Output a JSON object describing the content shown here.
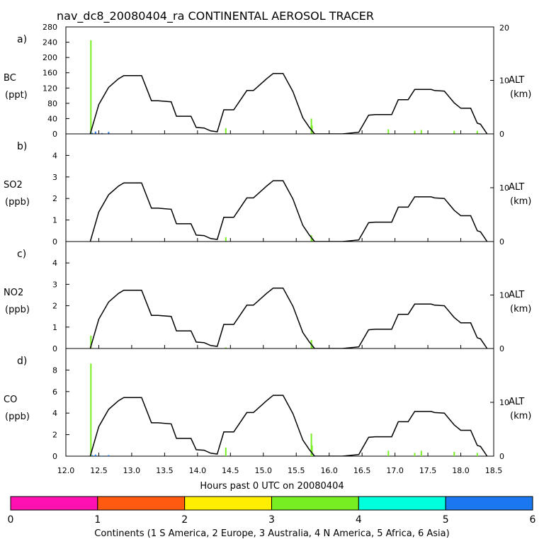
{
  "title": "nav_dc8_20080404_ra CONTINENTAL AEROSOL TRACER",
  "x_axis": {
    "label": "Hours past 0 UTC on 20080404",
    "ticks": [
      "12.0",
      "12.5",
      "13.0",
      "13.5",
      "14.0",
      "14.5",
      "15.0",
      "15.5",
      "16.0",
      "16.5",
      "17.0",
      "17.5",
      "18.0",
      "18.5"
    ]
  },
  "right_axis": {
    "label": "ALT",
    "units": "(km)",
    "ticks": [
      "0",
      "10",
      "20"
    ]
  },
  "panels": [
    {
      "id": "a",
      "letter": "a)",
      "species": "BC",
      "units": "(ppt)",
      "left_ticks": [
        "0",
        "40",
        "80",
        "120",
        "160",
        "200",
        "240",
        "280"
      ]
    },
    {
      "id": "b",
      "letter": "b)",
      "species": "SO2",
      "units": "(ppb)",
      "left_ticks": [
        "0",
        "1",
        "2",
        "3",
        "4"
      ]
    },
    {
      "id": "c",
      "letter": "c)",
      "species": "NO2",
      "units": "(ppb)",
      "left_ticks": [
        "0",
        "1",
        "2",
        "3",
        "4"
      ]
    },
    {
      "id": "d",
      "letter": "d)",
      "species": "CO",
      "units": "(ppb)",
      "left_ticks": [
        "0",
        "2",
        "4",
        "6",
        "8"
      ]
    }
  ],
  "colorbar": {
    "ticks": [
      "0",
      "1",
      "2",
      "3",
      "4",
      "5",
      "6"
    ],
    "colors": [
      "#ff10b0",
      "#ff5a10",
      "#ffee00",
      "#77ee22",
      "#00ffdd",
      "#1c78f0"
    ],
    "label": "Continents (1 S America, 2 Europe, 3 Australia, 4 N America, 5 Africa, 6 Asia)"
  },
  "chart_data": [
    {
      "type": "line",
      "panel": "a",
      "title": "BC",
      "xlabel": "Hours past 0 UTC on 20080404",
      "ylabel": "BC (ppt)",
      "ylabel_right": "ALT (km)",
      "xlim": [
        12.0,
        18.5
      ],
      "ylim": [
        0,
        280
      ],
      "ylim_right": [
        0,
        20
      ],
      "series": [
        {
          "name": "ALT",
          "axis": "right",
          "x": [
            12.37,
            12.5,
            12.65,
            12.8,
            12.88,
            13.15,
            13.3,
            13.4,
            13.6,
            13.68,
            13.9,
            13.98,
            14.1,
            14.2,
            14.3,
            14.4,
            14.55,
            14.75,
            14.85,
            15.05,
            15.15,
            15.3,
            15.45,
            15.6,
            15.7,
            15.78,
            16.0,
            16.2,
            16.45,
            16.6,
            16.7,
            16.95,
            17.05,
            17.2,
            17.3,
            17.55,
            17.6,
            17.75,
            17.9,
            18.0,
            18.15,
            18.25,
            18.3,
            18.4
          ],
          "y": [
            0,
            5.5,
            8.7,
            10.3,
            10.9,
            10.9,
            6.2,
            6.2,
            6.0,
            3.3,
            3.3,
            1.2,
            1.1,
            0.55,
            0.4,
            4.5,
            4.5,
            8.1,
            8.1,
            10.3,
            11.3,
            11.3,
            7.9,
            3.0,
            1.2,
            0,
            0,
            0,
            0.3,
            3.5,
            3.6,
            3.6,
            6.4,
            6.4,
            8.3,
            8.3,
            8.1,
            8.0,
            5.8,
            4.8,
            4.8,
            2.0,
            1.8,
            0
          ]
        },
        {
          "name": "S America (1)",
          "color": "#ff10b0",
          "values": []
        },
        {
          "name": "Europe (2)",
          "color": "#ff5a10",
          "values": []
        },
        {
          "name": "Australia (3)",
          "color": "#ffee00",
          "values": []
        },
        {
          "name": "N America (4)",
          "color": "#77ee22",
          "x": [
            12.38,
            14.43,
            15.73,
            15.74,
            16.9,
            17.3,
            17.4,
            17.9,
            18.25
          ],
          "y": [
            245,
            15,
            40,
            22,
            12,
            8,
            10,
            8,
            8
          ]
        },
        {
          "name": "Asia (6)",
          "color": "#1c78f0",
          "x": [
            12.4,
            12.45,
            12.55,
            12.65
          ],
          "y": [
            3,
            6,
            2,
            5
          ]
        }
      ]
    },
    {
      "type": "line",
      "panel": "b",
      "title": "SO2",
      "xlabel": "Hours past 0 UTC on 20080404",
      "ylabel": "SO2 (ppb)",
      "ylabel_right": "ALT (km)",
      "xlim": [
        12.0,
        18.5
      ],
      "ylim": [
        0,
        5
      ],
      "ylim_right": [
        0,
        20
      ],
      "series": [
        {
          "name": "N America (4)",
          "color": "#77ee22",
          "x": [
            14.43,
            15.73,
            15.74
          ],
          "y": [
            0.2,
            0.3,
            0.15
          ]
        }
      ]
    },
    {
      "type": "line",
      "panel": "c",
      "title": "NO2",
      "xlabel": "Hours past 0 UTC on 20080404",
      "ylabel": "NO2 (ppb)",
      "ylabel_right": "ALT (km)",
      "xlim": [
        12.0,
        18.5
      ],
      "ylim": [
        0,
        5
      ],
      "ylim_right": [
        0,
        20
      ],
      "series": [
        {
          "name": "N America (4)",
          "color": "#77ee22",
          "x": [
            12.38,
            14.43,
            15.73,
            15.74
          ],
          "y": [
            0.6,
            0.05,
            0.4,
            0.2
          ]
        }
      ]
    },
    {
      "type": "line",
      "panel": "d",
      "title": "CO",
      "xlabel": "Hours past 0 UTC on 20080404",
      "ylabel": "CO (ppb)",
      "ylabel_right": "ALT (km)",
      "xlim": [
        12.0,
        18.5
      ],
      "ylim": [
        0,
        10
      ],
      "ylim_right": [
        0,
        20
      ],
      "series": [
        {
          "name": "N America (4)",
          "color": "#77ee22",
          "x": [
            12.38,
            14.43,
            15.73,
            15.74,
            16.9,
            17.3,
            17.4,
            17.9,
            18.25
          ],
          "y": [
            8.6,
            0.8,
            2.1,
            1.0,
            0.5,
            0.3,
            0.5,
            0.4,
            0.3
          ]
        },
        {
          "name": "Asia (6)",
          "color": "#1c78f0",
          "x": [
            12.4,
            12.45,
            12.55,
            12.65
          ],
          "y": [
            0.1,
            0.15,
            0.05,
            0.1
          ]
        }
      ]
    }
  ]
}
